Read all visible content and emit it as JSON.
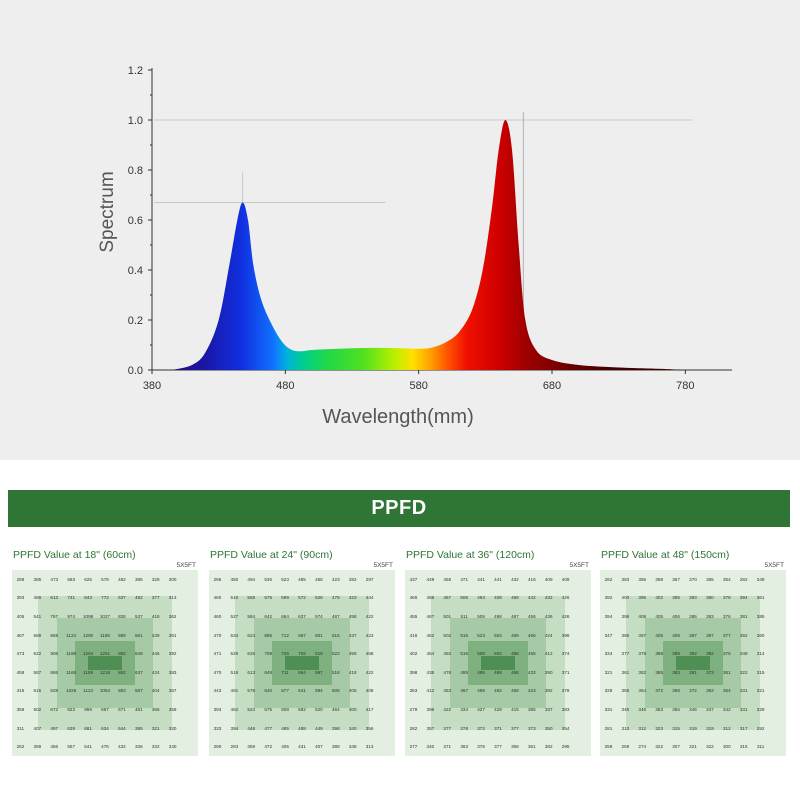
{
  "chart_data": {
    "type": "line",
    "xlabel": "Wavelength(mm)",
    "ylabel": "Spectrum",
    "xlim": [
      380,
      830
    ],
    "ylim": [
      0,
      1.2
    ],
    "x_ticks": [
      380,
      480,
      580,
      680,
      780
    ],
    "y_ticks": [
      "0.0",
      "0.2",
      "0.4",
      "0.6",
      "0.8",
      "1.0",
      "1.2"
    ],
    "grid": false,
    "series": [
      {
        "x": [
          395,
          410,
          420,
          430,
          438,
          444,
          448,
          452,
          456,
          462,
          470,
          478,
          485,
          492,
          500,
          520,
          540,
          560,
          580,
          590,
          600,
          610,
          620,
          628,
          635,
          640,
          645,
          650,
          655,
          660,
          668,
          680,
          700,
          730,
          760,
          780
        ],
        "y": [
          0.0,
          0.02,
          0.07,
          0.2,
          0.42,
          0.6,
          0.67,
          0.6,
          0.42,
          0.28,
          0.18,
          0.11,
          0.08,
          0.075,
          0.08,
          0.085,
          0.088,
          0.088,
          0.085,
          0.09,
          0.11,
          0.15,
          0.24,
          0.4,
          0.65,
          0.88,
          1.0,
          0.88,
          0.5,
          0.2,
          0.08,
          0.04,
          0.02,
          0.01,
          0.005,
          0.0
        ]
      }
    ]
  },
  "banner": "PPFD",
  "panels": [
    {
      "title": "PPFD Value at 18\" (60cm)",
      "size": "5X5FT",
      "rows": [
        [
          "289",
          "385",
          "473",
          "583",
          "625",
          "578",
          "482",
          "385",
          "328",
          "300",
          ""
        ],
        [
          "393",
          "466",
          "613",
          "741",
          "843",
          "772",
          "637",
          "482",
          "377",
          "313",
          ""
        ],
        [
          "405",
          "541",
          "767",
          "974",
          "1098",
          "1027",
          "828",
          "537",
          "418",
          "362",
          ""
        ],
        [
          "467",
          "589",
          "869",
          "1124",
          "1290",
          "1186",
          "889",
          "661",
          "439",
          "361",
          ""
        ],
        [
          "473",
          "622",
          "906",
          "1198",
          "1264",
          "1251",
          "962",
          "649",
          "446",
          "392",
          ""
        ],
        [
          "459",
          "587",
          "886",
          "1168",
          "1199",
          "1218",
          "862",
          "637",
          "424",
          "383",
          ""
        ],
        [
          "415",
          "515",
          "828",
          "1026",
          "1113",
          "1054",
          "883",
          "587",
          "404",
          "367",
          ""
        ],
        [
          "359",
          "502",
          "672",
          "823",
          "959",
          "867",
          "671",
          "481",
          "366",
          "359",
          ""
        ],
        [
          "311",
          "407",
          "497",
          "639",
          "681",
          "634",
          "544",
          "385",
          "321",
          "320",
          ""
        ],
        [
          "262",
          "359",
          "456",
          "557",
          "541",
          "476",
          "432",
          "336",
          "332",
          "340",
          ""
        ]
      ]
    },
    {
      "title": "PPFD Value at 24\" (90cm)",
      "size": "5X5FT",
      "rows": [
        [
          "295",
          "450",
          "494",
          "536",
          "523",
          "485",
          "468",
          "423",
          "282",
          "297",
          ""
        ],
        [
          "460",
          "510",
          "558",
          "576",
          "599",
          "572",
          "528",
          "478",
          "423",
          "444",
          ""
        ],
        [
          "460",
          "527",
          "584",
          "642",
          "664",
          "637",
          "574",
          "487",
          "458",
          "422",
          ""
        ],
        [
          "470",
          "534",
          "624",
          "685",
          "712",
          "687",
          "601",
          "515",
          "437",
          "423",
          ""
        ],
        [
          "471",
          "525",
          "626",
          "708",
          "726",
          "702",
          "619",
          "522",
          "458",
          "458",
          ""
        ],
        [
          "470",
          "516",
          "613",
          "649",
          "711",
          "664",
          "597",
          "518",
          "418",
          "422",
          ""
        ],
        [
          "443",
          "491",
          "576",
          "640",
          "677",
          "641",
          "594",
          "505",
          "405",
          "408",
          ""
        ],
        [
          "393",
          "462",
          "524",
          "575",
          "608",
          "582",
          "520",
          "464",
          "400",
          "417",
          ""
        ],
        [
          "333",
          "394",
          "448",
          "477",
          "485",
          "488",
          "449",
          "398",
          "340",
          "356",
          ""
        ],
        [
          "290",
          "283",
          "359",
          "472",
          "405",
          "431",
          "407",
          "388",
          "348",
          "313",
          ""
        ]
      ]
    },
    {
      "title": "PPFD Value at 36\" (120cm)",
      "size": "5X5FT",
      "rows": [
        [
          "437",
          "449",
          "468",
          "471",
          "441",
          "441",
          "432",
          "416",
          "409",
          "409",
          ""
        ],
        [
          "466",
          "488",
          "467",
          "506",
          "463",
          "408",
          "469",
          "442",
          "432",
          "426",
          ""
        ],
        [
          "455",
          "467",
          "501",
          "511",
          "505",
          "498",
          "467",
          "456",
          "436",
          "426",
          ""
        ],
        [
          "416",
          "462",
          "502",
          "516",
          "523",
          "504",
          "489",
          "466",
          "424",
          "398",
          ""
        ],
        [
          "402",
          "454",
          "492",
          "516",
          "508",
          "504",
          "488",
          "465",
          "412",
          "374",
          ""
        ],
        [
          "398",
          "435",
          "478",
          "495",
          "495",
          "488",
          "468",
          "433",
          "390",
          "371",
          ""
        ],
        [
          "363",
          "412",
          "453",
          "467",
          "468",
          "462",
          "458",
          "423",
          "392",
          "378",
          ""
        ],
        [
          "279",
          "398",
          "422",
          "434",
          "427",
          "429",
          "415",
          "385",
          "337",
          "383",
          ""
        ],
        [
          "282",
          "357",
          "377",
          "378",
          "372",
          "371",
          "377",
          "373",
          "350",
          "354",
          ""
        ],
        [
          "277",
          "340",
          "371",
          "363",
          "376",
          "377",
          "358",
          "361",
          "382",
          "295",
          ""
        ]
      ]
    },
    {
      "title": "PPFD Value at 48\" (150cm)",
      "size": "5X5FT",
      "rows": [
        [
          "262",
          "383",
          "385",
          "398",
          "367",
          "370",
          "365",
          "354",
          "282",
          "349",
          ""
        ],
        [
          "392",
          "400",
          "395",
          "402",
          "395",
          "393",
          "390",
          "378",
          "394",
          "361",
          ""
        ],
        [
          "394",
          "398",
          "408",
          "405",
          "406",
          "395",
          "383",
          "376",
          "381",
          "385",
          ""
        ],
        [
          "347",
          "385",
          "397",
          "405",
          "408",
          "397",
          "397",
          "377",
          "392",
          "360",
          ""
        ],
        [
          "334",
          "377",
          "379",
          "399",
          "399",
          "392",
          "382",
          "376",
          "349",
          "314",
          ""
        ],
        [
          "321",
          "361",
          "382",
          "385",
          "383",
          "381",
          "373",
          "361",
          "322",
          "315",
          ""
        ],
        [
          "329",
          "355",
          "364",
          "372",
          "368",
          "372",
          "362",
          "354",
          "331",
          "321",
          ""
        ],
        [
          "331",
          "345",
          "346",
          "353",
          "356",
          "346",
          "347",
          "342",
          "331",
          "329",
          ""
        ],
        [
          "281",
          "313",
          "312",
          "323",
          "315",
          "319",
          "319",
          "312",
          "317",
          "292",
          ""
        ],
        [
          "259",
          "259",
          "274",
          "322",
          "307",
          "321",
          "322",
          "300",
          "315",
          "311",
          ""
        ]
      ]
    }
  ]
}
